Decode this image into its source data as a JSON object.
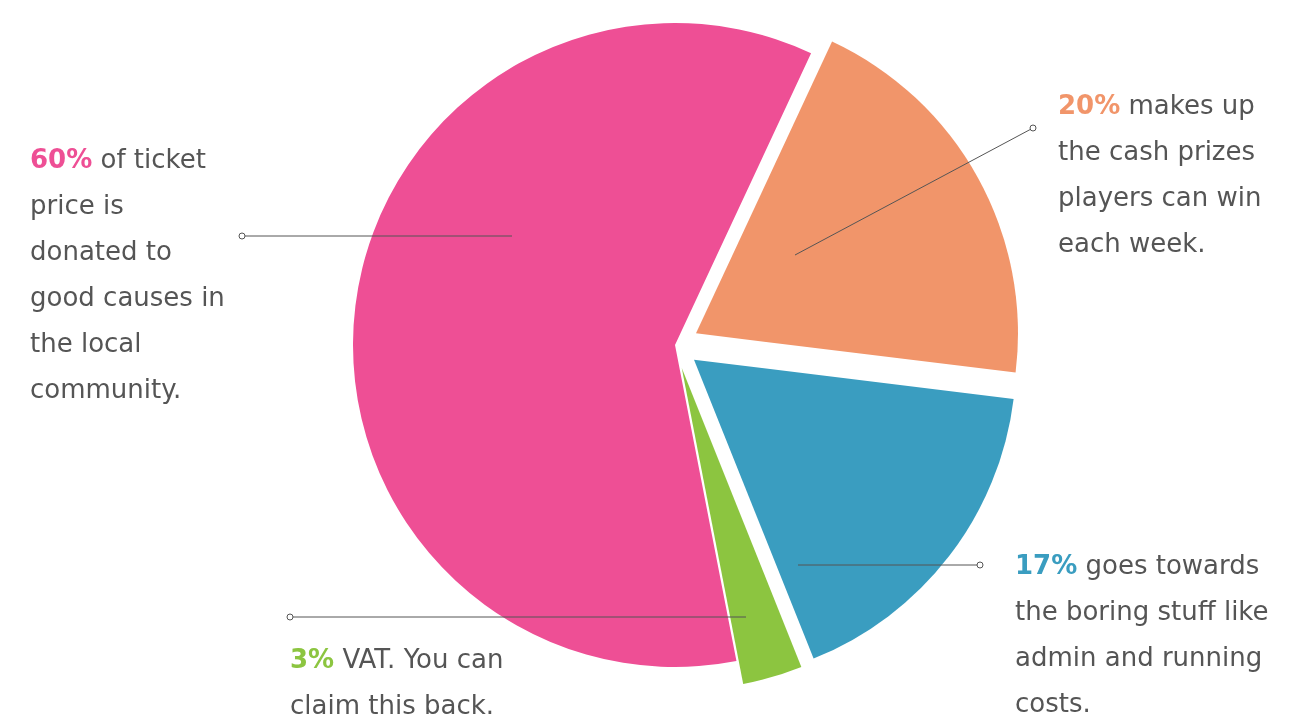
{
  "chart_data": {
    "type": "pie",
    "categories": [
      "of ticket price is donated to good causes in the local community.",
      "makes up the cash prizes players can win each week.",
      "goes towards the boring stuff like admin and running costs.",
      "VAT. You can claim this back."
    ],
    "values": [
      60,
      20,
      17,
      3
    ],
    "value_labels": [
      "60%",
      "20%",
      "17%",
      "3%"
    ],
    "colors": [
      "#ee4f95",
      "#f1956a",
      "#3a9dc0",
      "#8cc540"
    ]
  }
}
